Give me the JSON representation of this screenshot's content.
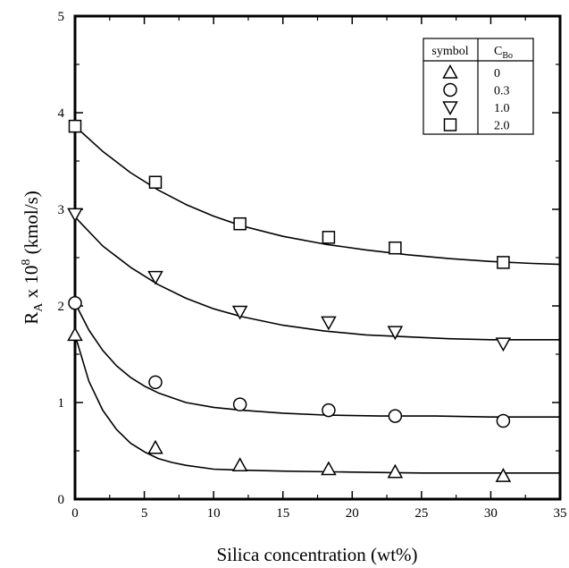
{
  "chart_data": {
    "type": "scatter",
    "xlabel": "Silica concentration (wt%)",
    "ylabel": {
      "main": "R",
      "sub": "A",
      "mid": " x 10",
      "sup": "8",
      "end": " (kmol/s)"
    },
    "xlim": [
      0,
      35
    ],
    "ylim": [
      0,
      5
    ],
    "xticks": [
      "0",
      "5",
      "10",
      "15",
      "20",
      "25",
      "30",
      "35"
    ],
    "yticks": [
      "0",
      "1",
      "2",
      "3",
      "4",
      "5"
    ],
    "grid": false,
    "legend": {
      "position": "top-right",
      "header_symbol": "symbol",
      "header_value": {
        "main": "C",
        "sub": "Bo"
      },
      "entries": [
        {
          "symbol": "triangle-up",
          "value": "0"
        },
        {
          "symbol": "circle",
          "value": "0.3"
        },
        {
          "symbol": "triangle-down",
          "value": "1.0"
        },
        {
          "symbol": "square",
          "value": "2.0"
        }
      ]
    },
    "series": [
      {
        "marker": "triangle-up",
        "points": [
          [
            0,
            1.7
          ],
          [
            5.8,
            0.53
          ],
          [
            11.9,
            0.35
          ],
          [
            18.3,
            0.31
          ],
          [
            23.1,
            0.28
          ],
          [
            30.9,
            0.24
          ]
        ],
        "fit": [
          [
            0,
            1.7
          ],
          [
            1,
            1.22
          ],
          [
            2,
            0.92
          ],
          [
            3,
            0.72
          ],
          [
            4,
            0.58
          ],
          [
            5,
            0.49
          ],
          [
            6,
            0.42
          ],
          [
            7,
            0.38
          ],
          [
            8,
            0.35
          ],
          [
            10,
            0.31
          ],
          [
            12,
            0.3
          ],
          [
            15,
            0.29
          ],
          [
            20,
            0.28
          ],
          [
            25,
            0.27
          ],
          [
            30,
            0.27
          ],
          [
            35,
            0.27
          ]
        ]
      },
      {
        "marker": "circle",
        "points": [
          [
            0,
            2.03
          ],
          [
            5.8,
            1.21
          ],
          [
            11.9,
            0.98
          ],
          [
            18.3,
            0.92
          ],
          [
            23.1,
            0.86
          ],
          [
            30.9,
            0.81
          ]
        ],
        "fit": [
          [
            0,
            2.03
          ],
          [
            1,
            1.75
          ],
          [
            2,
            1.54
          ],
          [
            3,
            1.38
          ],
          [
            4,
            1.26
          ],
          [
            5,
            1.17
          ],
          [
            6,
            1.1
          ],
          [
            8,
            1.0
          ],
          [
            10,
            0.95
          ],
          [
            12,
            0.92
          ],
          [
            15,
            0.89
          ],
          [
            18,
            0.87
          ],
          [
            22,
            0.86
          ],
          [
            26,
            0.86
          ],
          [
            30,
            0.85
          ],
          [
            35,
            0.85
          ]
        ]
      },
      {
        "marker": "triangle-down",
        "points": [
          [
            0,
            2.95
          ],
          [
            5.8,
            2.3
          ],
          [
            11.9,
            1.94
          ],
          [
            18.3,
            1.83
          ],
          [
            23.1,
            1.73
          ],
          [
            30.9,
            1.61
          ]
        ],
        "fit": [
          [
            0,
            2.92
          ],
          [
            2,
            2.62
          ],
          [
            4,
            2.4
          ],
          [
            6,
            2.22
          ],
          [
            8,
            2.08
          ],
          [
            10,
            1.97
          ],
          [
            12,
            1.89
          ],
          [
            15,
            1.8
          ],
          [
            18,
            1.74
          ],
          [
            21,
            1.7
          ],
          [
            24,
            1.68
          ],
          [
            27,
            1.66
          ],
          [
            30,
            1.65
          ],
          [
            33,
            1.65
          ],
          [
            35,
            1.65
          ]
        ]
      },
      {
        "marker": "square",
        "points": [
          [
            0,
            3.86
          ],
          [
            5.8,
            3.28
          ],
          [
            11.9,
            2.85
          ],
          [
            18.3,
            2.71
          ],
          [
            23.1,
            2.6
          ],
          [
            30.9,
            2.45
          ]
        ],
        "fit": [
          [
            0,
            3.86
          ],
          [
            2,
            3.6
          ],
          [
            4,
            3.38
          ],
          [
            6,
            3.2
          ],
          [
            8,
            3.05
          ],
          [
            10,
            2.93
          ],
          [
            12,
            2.83
          ],
          [
            15,
            2.72
          ],
          [
            18,
            2.64
          ],
          [
            21,
            2.58
          ],
          [
            24,
            2.53
          ],
          [
            27,
            2.49
          ],
          [
            30,
            2.46
          ],
          [
            33,
            2.44
          ],
          [
            35,
            2.43
          ]
        ]
      }
    ]
  }
}
